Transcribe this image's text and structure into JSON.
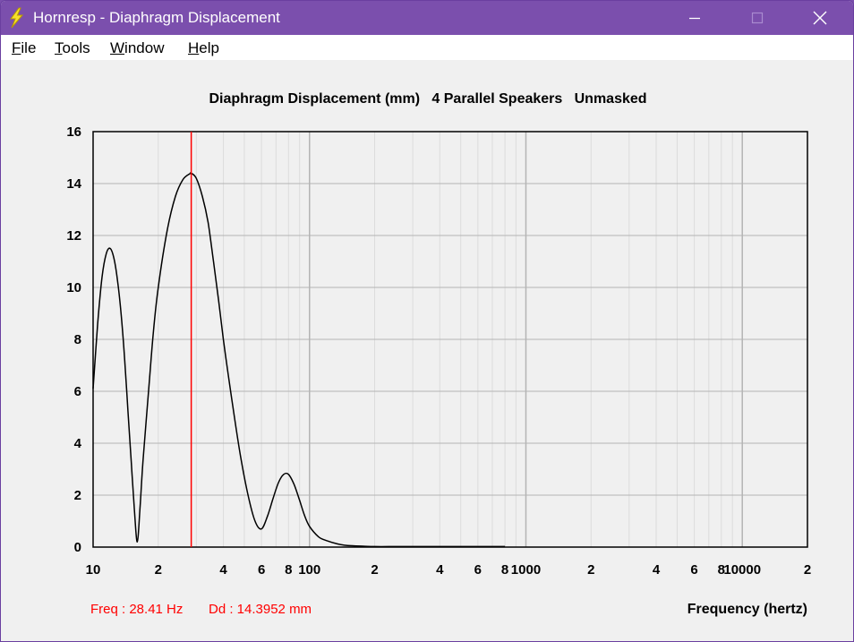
{
  "window": {
    "title": "Hornresp - Diaphragm Displacement",
    "accent": "#7b4fad",
    "icons": {
      "app": "lightning-bolt-icon",
      "minimize": "minimize-icon",
      "maximize": "maximize-icon",
      "close": "close-icon"
    }
  },
  "menu": {
    "file": {
      "mnemonic": "F",
      "rest": "ile"
    },
    "tools": {
      "mnemonic": "T",
      "rest": "ools"
    },
    "window": {
      "mnemonic": "W",
      "rest": "indow"
    },
    "help": {
      "mnemonic": "H",
      "rest": "elp"
    }
  },
  "readout": {
    "freq": "Freq : 28.41 Hz",
    "dd": "Dd : 14.3952 mm"
  },
  "chart_data": {
    "type": "line",
    "title": "Diaphragm Displacement (mm)   4 Parallel Speakers   Unmasked",
    "xlabel": "Frequency (hertz)",
    "ylabel": "",
    "xscale": "log",
    "xlim": [
      10,
      20000
    ],
    "ylim": [
      0,
      16
    ],
    "grid": true,
    "legend": "none",
    "x_tick_labels": [
      {
        "v": 10,
        "t": "10"
      },
      {
        "v": 20,
        "t": "2"
      },
      {
        "v": 40,
        "t": "4"
      },
      {
        "v": 60,
        "t": "6"
      },
      {
        "v": 80,
        "t": "8"
      },
      {
        "v": 100,
        "t": "100"
      },
      {
        "v": 200,
        "t": "2"
      },
      {
        "v": 400,
        "t": "4"
      },
      {
        "v": 600,
        "t": "6"
      },
      {
        "v": 800,
        "t": "8"
      },
      {
        "v": 1000,
        "t": "1000"
      },
      {
        "v": 2000,
        "t": "2"
      },
      {
        "v": 4000,
        "t": "4"
      },
      {
        "v": 6000,
        "t": "6"
      },
      {
        "v": 8000,
        "t": "8"
      },
      {
        "v": 10000,
        "t": "10000"
      },
      {
        "v": 20000,
        "t": "2"
      }
    ],
    "y_ticks": [
      0,
      2,
      4,
      6,
      8,
      10,
      12,
      14,
      16
    ],
    "cursor_x": 28.41,
    "colors": {
      "line": "#000000",
      "cursor": "#ff0000",
      "grid_minor": "#dcdcdc",
      "grid_major": "#b4b4b4"
    },
    "series": [
      {
        "values_x": [
          10,
          10.5,
          11,
          11.5,
          12,
          12.5,
          13,
          13.5,
          14,
          14.5,
          15,
          15.5,
          16,
          16.5,
          17,
          18,
          19,
          20,
          22,
          24,
          26,
          28,
          28.41,
          30,
          32,
          34,
          36,
          38,
          40,
          42,
          45,
          48,
          52,
          56,
          60,
          64,
          68,
          72,
          76,
          80,
          85,
          90,
          95,
          100,
          110,
          120,
          135,
          150,
          180,
          200,
          250,
          300,
          400,
          500,
          600,
          700,
          800
        ],
        "values_y": [
          6.1,
          8.6,
          10.4,
          11.3,
          11.5,
          11.1,
          10.2,
          8.9,
          7.2,
          5.2,
          3.3,
          1.5,
          0.2,
          1.6,
          3.3,
          5.9,
          8.3,
          10.0,
          12.2,
          13.5,
          14.15,
          14.38,
          14.4,
          14.2,
          13.5,
          12.5,
          11.0,
          9.5,
          8.0,
          6.7,
          5.0,
          3.5,
          2.0,
          1.0,
          0.7,
          1.2,
          1.9,
          2.5,
          2.8,
          2.8,
          2.4,
          1.8,
          1.2,
          0.8,
          0.4,
          0.25,
          0.12,
          0.06,
          0.03,
          0.02,
          0.02,
          0.02,
          0.02,
          0.02,
          0.02,
          0.02,
          0.02
        ]
      }
    ]
  }
}
